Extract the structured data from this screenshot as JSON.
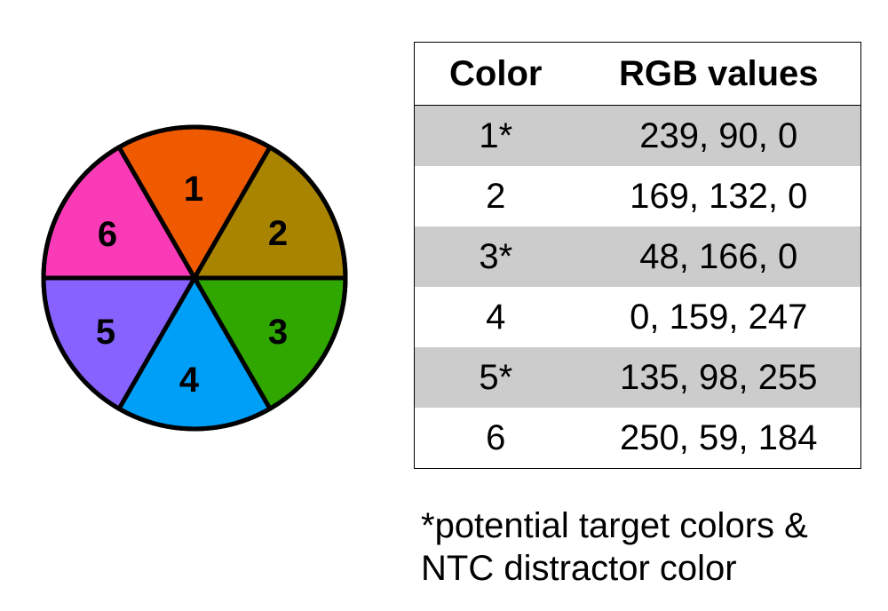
{
  "wheel": {
    "segments": [
      {
        "label": "1",
        "color": "#EF5A00"
      },
      {
        "label": "2",
        "color": "#A98400"
      },
      {
        "label": "3",
        "color": "#30A600"
      },
      {
        "label": "4",
        "color": "#009FF7"
      },
      {
        "label": "5",
        "color": "#8762FF"
      },
      {
        "label": "6",
        "color": "#FA3BB8"
      }
    ]
  },
  "table": {
    "headers": {
      "color": "Color",
      "rgb": "RGB values"
    },
    "rows": [
      {
        "color": "1*",
        "rgb": "239, 90, 0"
      },
      {
        "color": "2",
        "rgb": "169, 132, 0"
      },
      {
        "color": "3*",
        "rgb": "48, 166, 0"
      },
      {
        "color": "4",
        "rgb": "0, 159, 247"
      },
      {
        "color": "5*",
        "rgb": "135, 98, 255"
      },
      {
        "color": "6",
        "rgb": "250, 59, 184"
      }
    ]
  },
  "footnote": {
    "line1": "*potential target colors &",
    "line2": "NTC distractor color"
  }
}
